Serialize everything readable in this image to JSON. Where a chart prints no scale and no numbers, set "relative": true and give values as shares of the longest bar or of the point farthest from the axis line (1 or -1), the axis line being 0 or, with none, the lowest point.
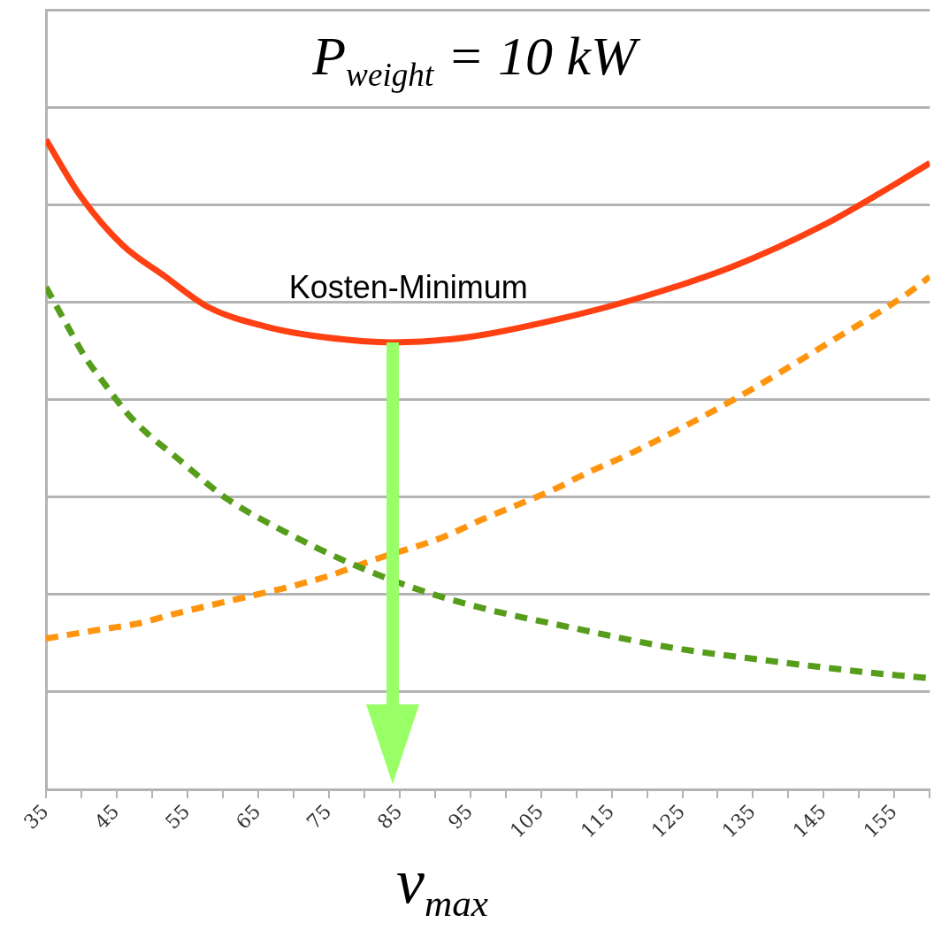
{
  "chart_data": {
    "type": "line",
    "title": "P$_{weight}$ = 10 kW",
    "xlabel": "v$_{max}$",
    "relative": true,
    "grid": "y",
    "legend": false,
    "marker": "none",
    "xlim": [
      35,
      160
    ],
    "xticks": [
      35,
      {
        "value": 40,
        "label": null
      },
      45,
      {
        "value": 50,
        "label": null
      },
      55,
      {
        "value": 60,
        "label": null
      },
      65,
      {
        "value": 70,
        "label": null
      },
      75,
      {
        "value": 80,
        "label": null
      },
      85,
      {
        "value": 90,
        "label": null
      },
      95,
      {
        "value": 100,
        "label": null
      },
      105,
      {
        "value": 110,
        "label": null
      },
      115,
      {
        "value": 120,
        "label": null
      },
      125,
      {
        "value": 130,
        "label": null
      },
      135,
      {
        "value": 140,
        "label": null
      },
      145,
      {
        "value": 150,
        "label": null
      },
      155,
      {
        "value": 160,
        "label": null
      }
    ],
    "series": [
      {
        "color": "#ff4013",
        "line_style": "solid",
        "x": [
          35,
          39.7,
          45.8,
          51.9,
          58,
          66.2,
          74.3,
          84.1,
          94.7,
          107.2,
          119.7,
          132.2,
          144.7,
          153,
          160
        ],
        "values": [
          1,
          0.916,
          0.838,
          0.789,
          0.742,
          0.712,
          0.696,
          0.688,
          0.696,
          0.723,
          0.759,
          0.805,
          0.867,
          0.918,
          0.964
        ]
      },
      {
        "color": "#579d1c",
        "line_style": "dashed",
        "x": [
          35,
          38.1,
          40.5,
          43.3,
          46.4,
          49.4,
          53.1,
          60.5,
          68.7,
          77.2,
          86.2,
          95.6,
          109.3,
          123,
          137.2,
          151.2,
          160
        ],
        "values": [
          0.773,
          0.712,
          0.666,
          0.624,
          0.58,
          0.547,
          0.514,
          0.448,
          0.397,
          0.352,
          0.313,
          0.282,
          0.249,
          0.219,
          0.198,
          0.18,
          0.171
        ]
      },
      {
        "color": "#ff950e",
        "line_style": "dashed",
        "x": [
          35,
          42.1,
          47.9,
          53.5,
          64.1,
          69.9,
          75.1,
          81.6,
          91.1,
          96.4,
          106.9,
          111.7,
          117.3,
          131.8,
          146.4,
          156.3,
          160
        ],
        "values": [
          0.232,
          0.245,
          0.255,
          0.271,
          0.298,
          0.313,
          0.329,
          0.354,
          0.388,
          0.414,
          0.462,
          0.488,
          0.515,
          0.597,
          0.692,
          0.759,
          0.789
        ]
      }
    ],
    "annotations": [
      {
        "text": "Kosten-Minimum",
        "x": 84,
        "y": 0.688
      }
    ]
  }
}
